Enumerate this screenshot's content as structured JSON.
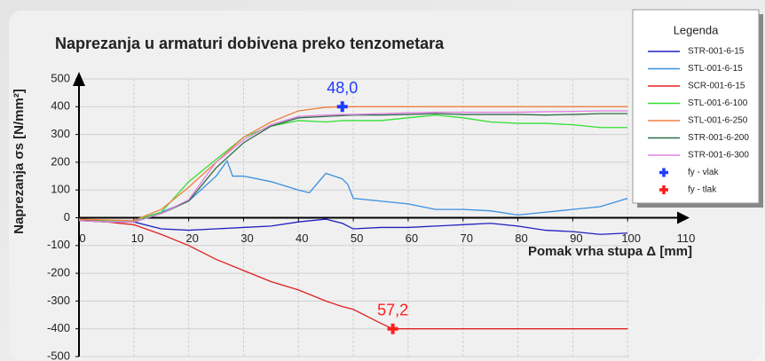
{
  "chart_data": {
    "type": "line",
    "title": "Naprezanja u armaturi dobivena preko tenzometara",
    "x_label": "Pomak vrha stupa Δ [mm]",
    "y_label": "Naprezanja σs [N/mm²]",
    "legend_title": "Legenda",
    "legend": "upper right",
    "grid": true,
    "xlim": [
      0,
      110
    ],
    "ylim": [
      -500,
      500
    ],
    "xticks": [
      0,
      10,
      20,
      30,
      40,
      50,
      60,
      70,
      80,
      90,
      100,
      110
    ],
    "yticks": [
      -500,
      -400,
      -300,
      -200,
      -100,
      0,
      100,
      200,
      300,
      400,
      500
    ],
    "series": [
      {
        "name": "STR-001-6-15",
        "color": "#2020c0",
        "x": [
          0,
          5,
          10,
          15,
          20,
          25,
          30,
          35,
          40,
          45,
          48,
          50,
          55,
          60,
          65,
          70,
          75,
          80,
          85,
          90,
          95,
          100
        ],
        "values": [
          -10,
          -15,
          -15,
          -40,
          -45,
          -40,
          -35,
          -30,
          -15,
          -5,
          -20,
          -40,
          -35,
          -35,
          -30,
          -25,
          -20,
          -30,
          -45,
          -50,
          -60,
          -55
        ]
      },
      {
        "name": "STL-001-6-15",
        "color": "#3a8fe0",
        "x": [
          0,
          5,
          10,
          15,
          20,
          25,
          27,
          28,
          30,
          35,
          40,
          42,
          45,
          48,
          49,
          50,
          55,
          60,
          65,
          70,
          75,
          80,
          85,
          90,
          95,
          100
        ],
        "values": [
          -5,
          -10,
          -10,
          20,
          60,
          150,
          205,
          150,
          150,
          130,
          100,
          90,
          160,
          140,
          120,
          70,
          60,
          50,
          30,
          30,
          25,
          10,
          20,
          30,
          40,
          70
        ]
      },
      {
        "name": "SCR-001-6-15",
        "color": "#e02020",
        "x": [
          0,
          5,
          10,
          15,
          20,
          25,
          30,
          35,
          40,
          45,
          48,
          50,
          55,
          57.2,
          60,
          65,
          70,
          75,
          80,
          85,
          90,
          95,
          100
        ],
        "values": [
          -5,
          -15,
          -25,
          -60,
          -100,
          -150,
          -190,
          -230,
          -260,
          -300,
          -320,
          -330,
          -380,
          -400,
          -400,
          -400,
          -400,
          -400,
          -400,
          -400,
          -400,
          -400,
          -400
        ]
      },
      {
        "name": "STL-001-6-100",
        "color": "#33e033",
        "x": [
          0,
          5,
          10,
          15,
          20,
          25,
          30,
          35,
          40,
          45,
          48,
          50,
          55,
          60,
          65,
          70,
          75,
          80,
          85,
          90,
          95,
          100
        ],
        "values": [
          -5,
          -10,
          -10,
          20,
          130,
          210,
          290,
          330,
          350,
          345,
          350,
          350,
          350,
          360,
          370,
          360,
          345,
          340,
          340,
          335,
          325,
          325
        ]
      },
      {
        "name": "STL-001-6-250",
        "color": "#f08040",
        "x": [
          0,
          5,
          10,
          15,
          20,
          25,
          30,
          35,
          40,
          45,
          48,
          50,
          55,
          60,
          65,
          70,
          75,
          80,
          85,
          90,
          95,
          100
        ],
        "values": [
          -5,
          -8,
          -10,
          30,
          110,
          200,
          290,
          345,
          385,
          398,
          400,
          400,
          400,
          400,
          400,
          400,
          400,
          400,
          400,
          400,
          400,
          400
        ]
      },
      {
        "name": "STR-001-6-200",
        "color": "#2e6b4a",
        "x": [
          0,
          5,
          10,
          15,
          20,
          25,
          30,
          35,
          40,
          45,
          48,
          50,
          55,
          60,
          65,
          70,
          75,
          80,
          85,
          90,
          95,
          100
        ],
        "values": [
          -10,
          -15,
          -15,
          15,
          60,
          180,
          270,
          330,
          360,
          365,
          368,
          370,
          370,
          372,
          375,
          372,
          372,
          372,
          370,
          372,
          375,
          375
        ]
      },
      {
        "name": "STR-001-6-300",
        "color": "#e080e0",
        "x": [
          0,
          5,
          10,
          15,
          20,
          25,
          30,
          35,
          40,
          45,
          48,
          50,
          55,
          60,
          65,
          70,
          75,
          80,
          85,
          90,
          95,
          100
        ],
        "values": [
          -10,
          -15,
          -15,
          15,
          65,
          200,
          280,
          335,
          365,
          370,
          372,
          372,
          375,
          378,
          380,
          380,
          380,
          380,
          382,
          383,
          385,
          385
        ]
      },
      {
        "name": "fy - vlak",
        "color": "#1e3cff",
        "marker": "plus",
        "x": [
          48
        ],
        "values": [
          400
        ],
        "value_labels": [
          "48,0"
        ]
      },
      {
        "name": "fy - tlak",
        "color": "#ff1e1e",
        "marker": "plus",
        "x": [
          57.2
        ],
        "values": [
          -400
        ],
        "value_labels": [
          "57,2"
        ]
      }
    ]
  }
}
